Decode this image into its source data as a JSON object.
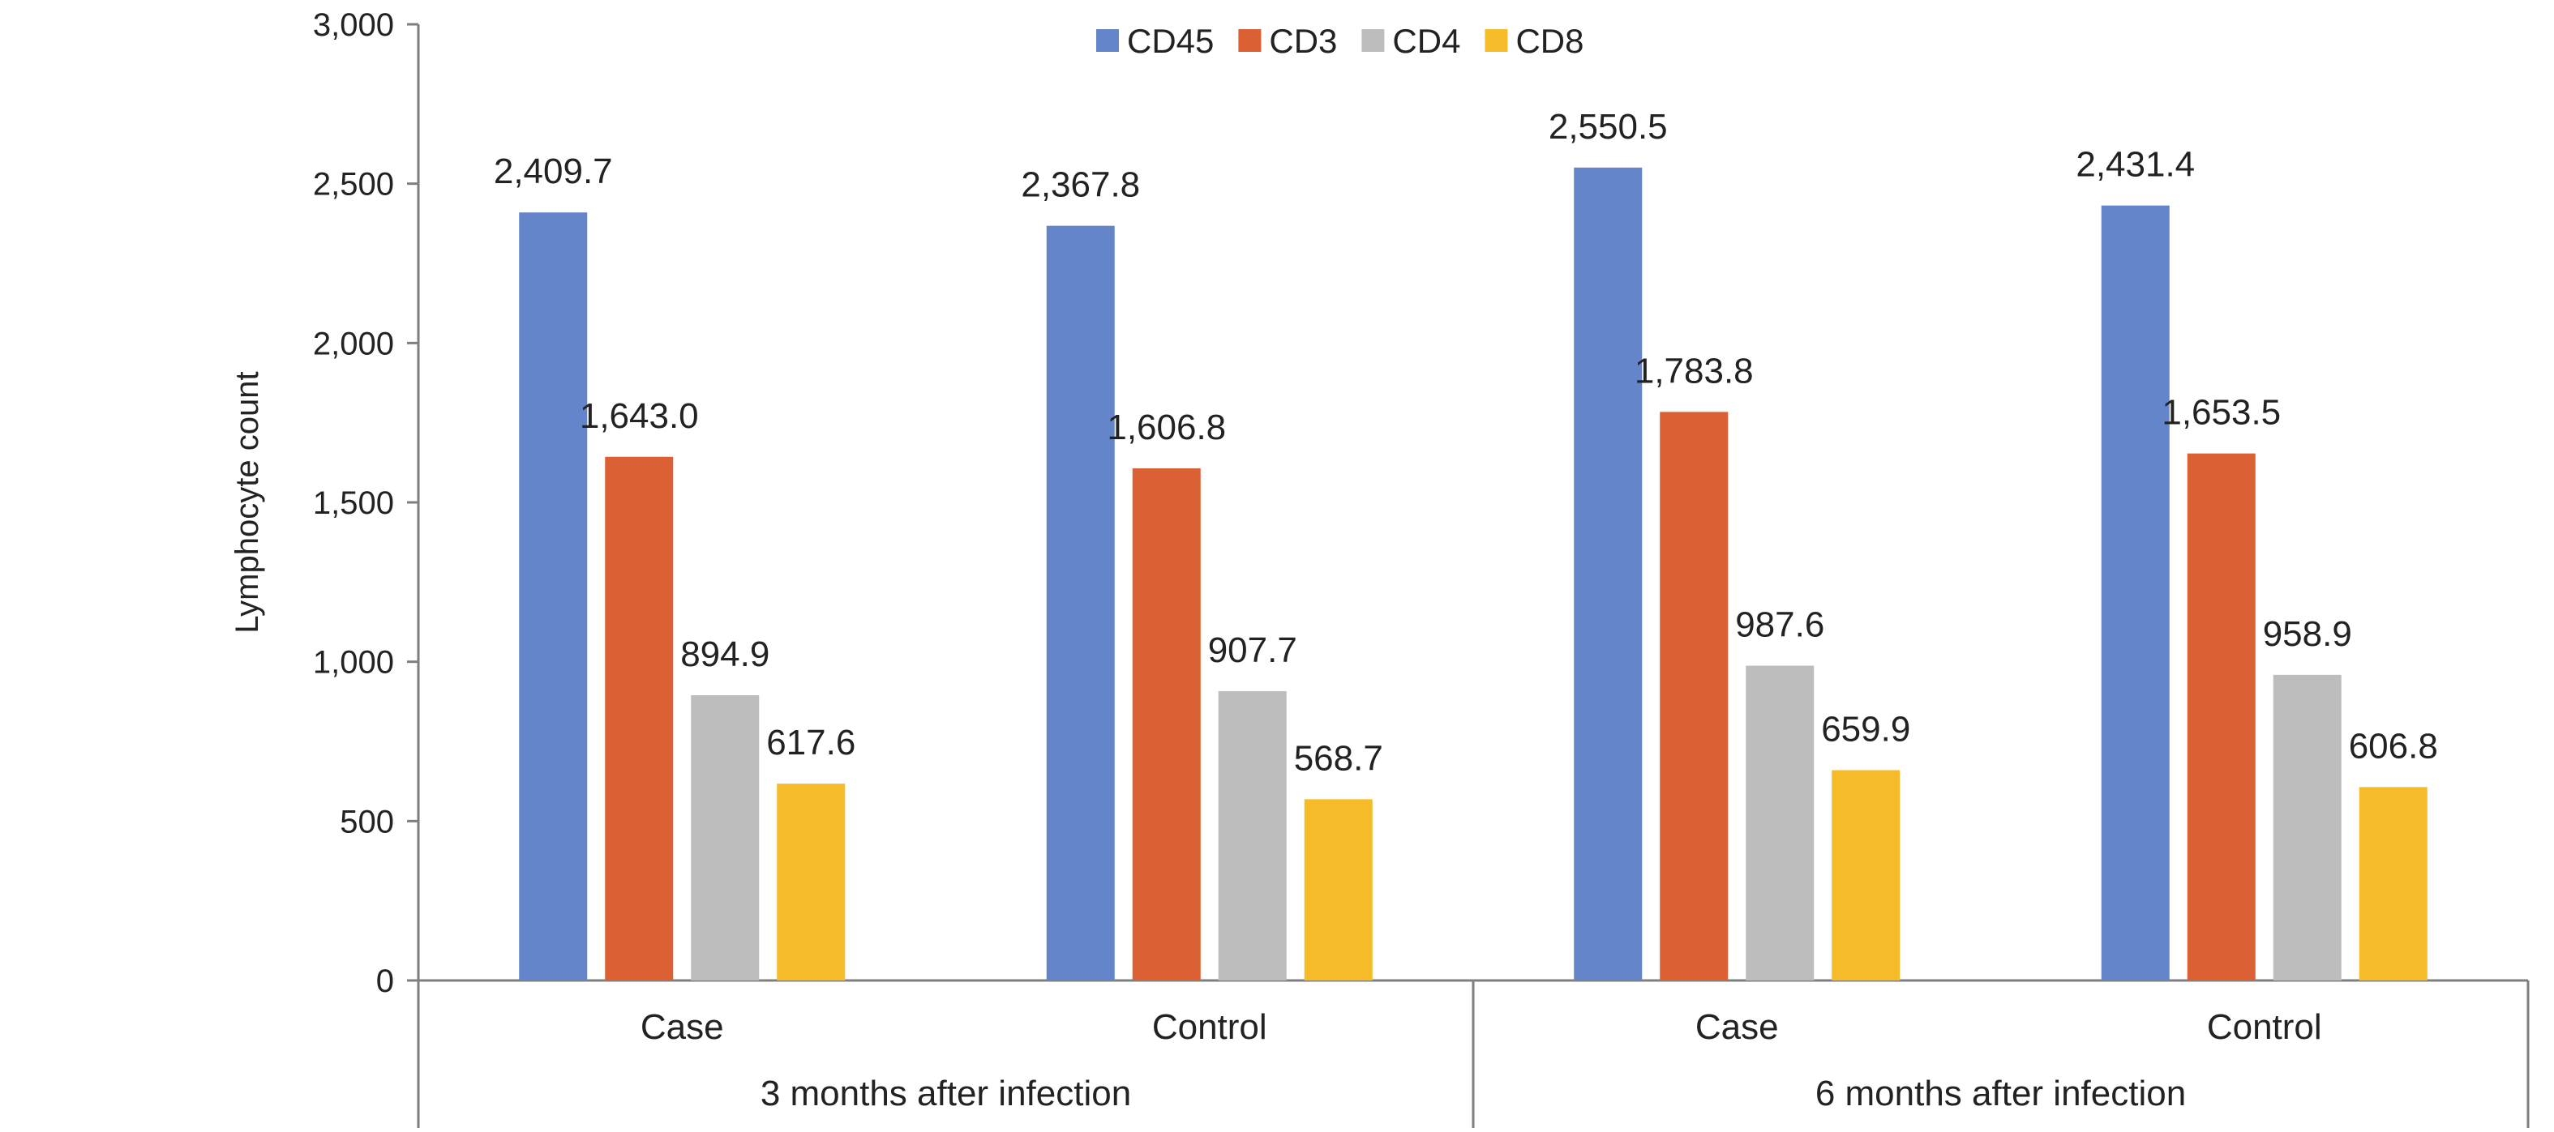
{
  "chart_data": {
    "type": "bar",
    "title": "",
    "xlabel": "",
    "ylabel": "Lymphocyte count",
    "ylim": [
      0,
      3000
    ],
    "y_ticks": [
      "0",
      "500",
      "1,000",
      "1,500",
      "2,000",
      "2,500",
      "3,000"
    ],
    "y_tick_values": [
      0,
      500,
      1000,
      1500,
      2000,
      2500,
      3000
    ],
    "grid": false,
    "legend_position": "top-center",
    "groups": [
      {
        "label": "3 months after infection",
        "categories": [
          "Case",
          "Control"
        ]
      },
      {
        "label": "6 months after infection",
        "categories": [
          "Case",
          "Control"
        ]
      }
    ],
    "categories": [
      "Case",
      "Control",
      "Case",
      "Control"
    ],
    "series": [
      {
        "name": "CD45",
        "color": "#6585cb",
        "values": [
          2409.7,
          2367.8,
          2550.5,
          2431.4
        ],
        "labels": [
          "2,409.7",
          "2,367.8",
          "2,550.5",
          "2,431.4"
        ]
      },
      {
        "name": "CD3",
        "color": "#db6134",
        "values": [
          1643.0,
          1606.8,
          1783.8,
          1653.5
        ],
        "labels": [
          "1,643.0",
          "1,606.8",
          "1,783.8",
          "1,653.5"
        ]
      },
      {
        "name": "CD4",
        "color": "#bdbdbd",
        "values": [
          894.9,
          907.7,
          987.6,
          958.9
        ],
        "labels": [
          "894.9",
          "907.7",
          "987.6",
          "958.9"
        ]
      },
      {
        "name": "CD8",
        "color": "#f6bb28",
        "values": [
          617.6,
          568.7,
          659.9,
          606.8
        ],
        "labels": [
          "617.6",
          "568.7",
          "659.9",
          "606.8"
        ]
      }
    ]
  }
}
